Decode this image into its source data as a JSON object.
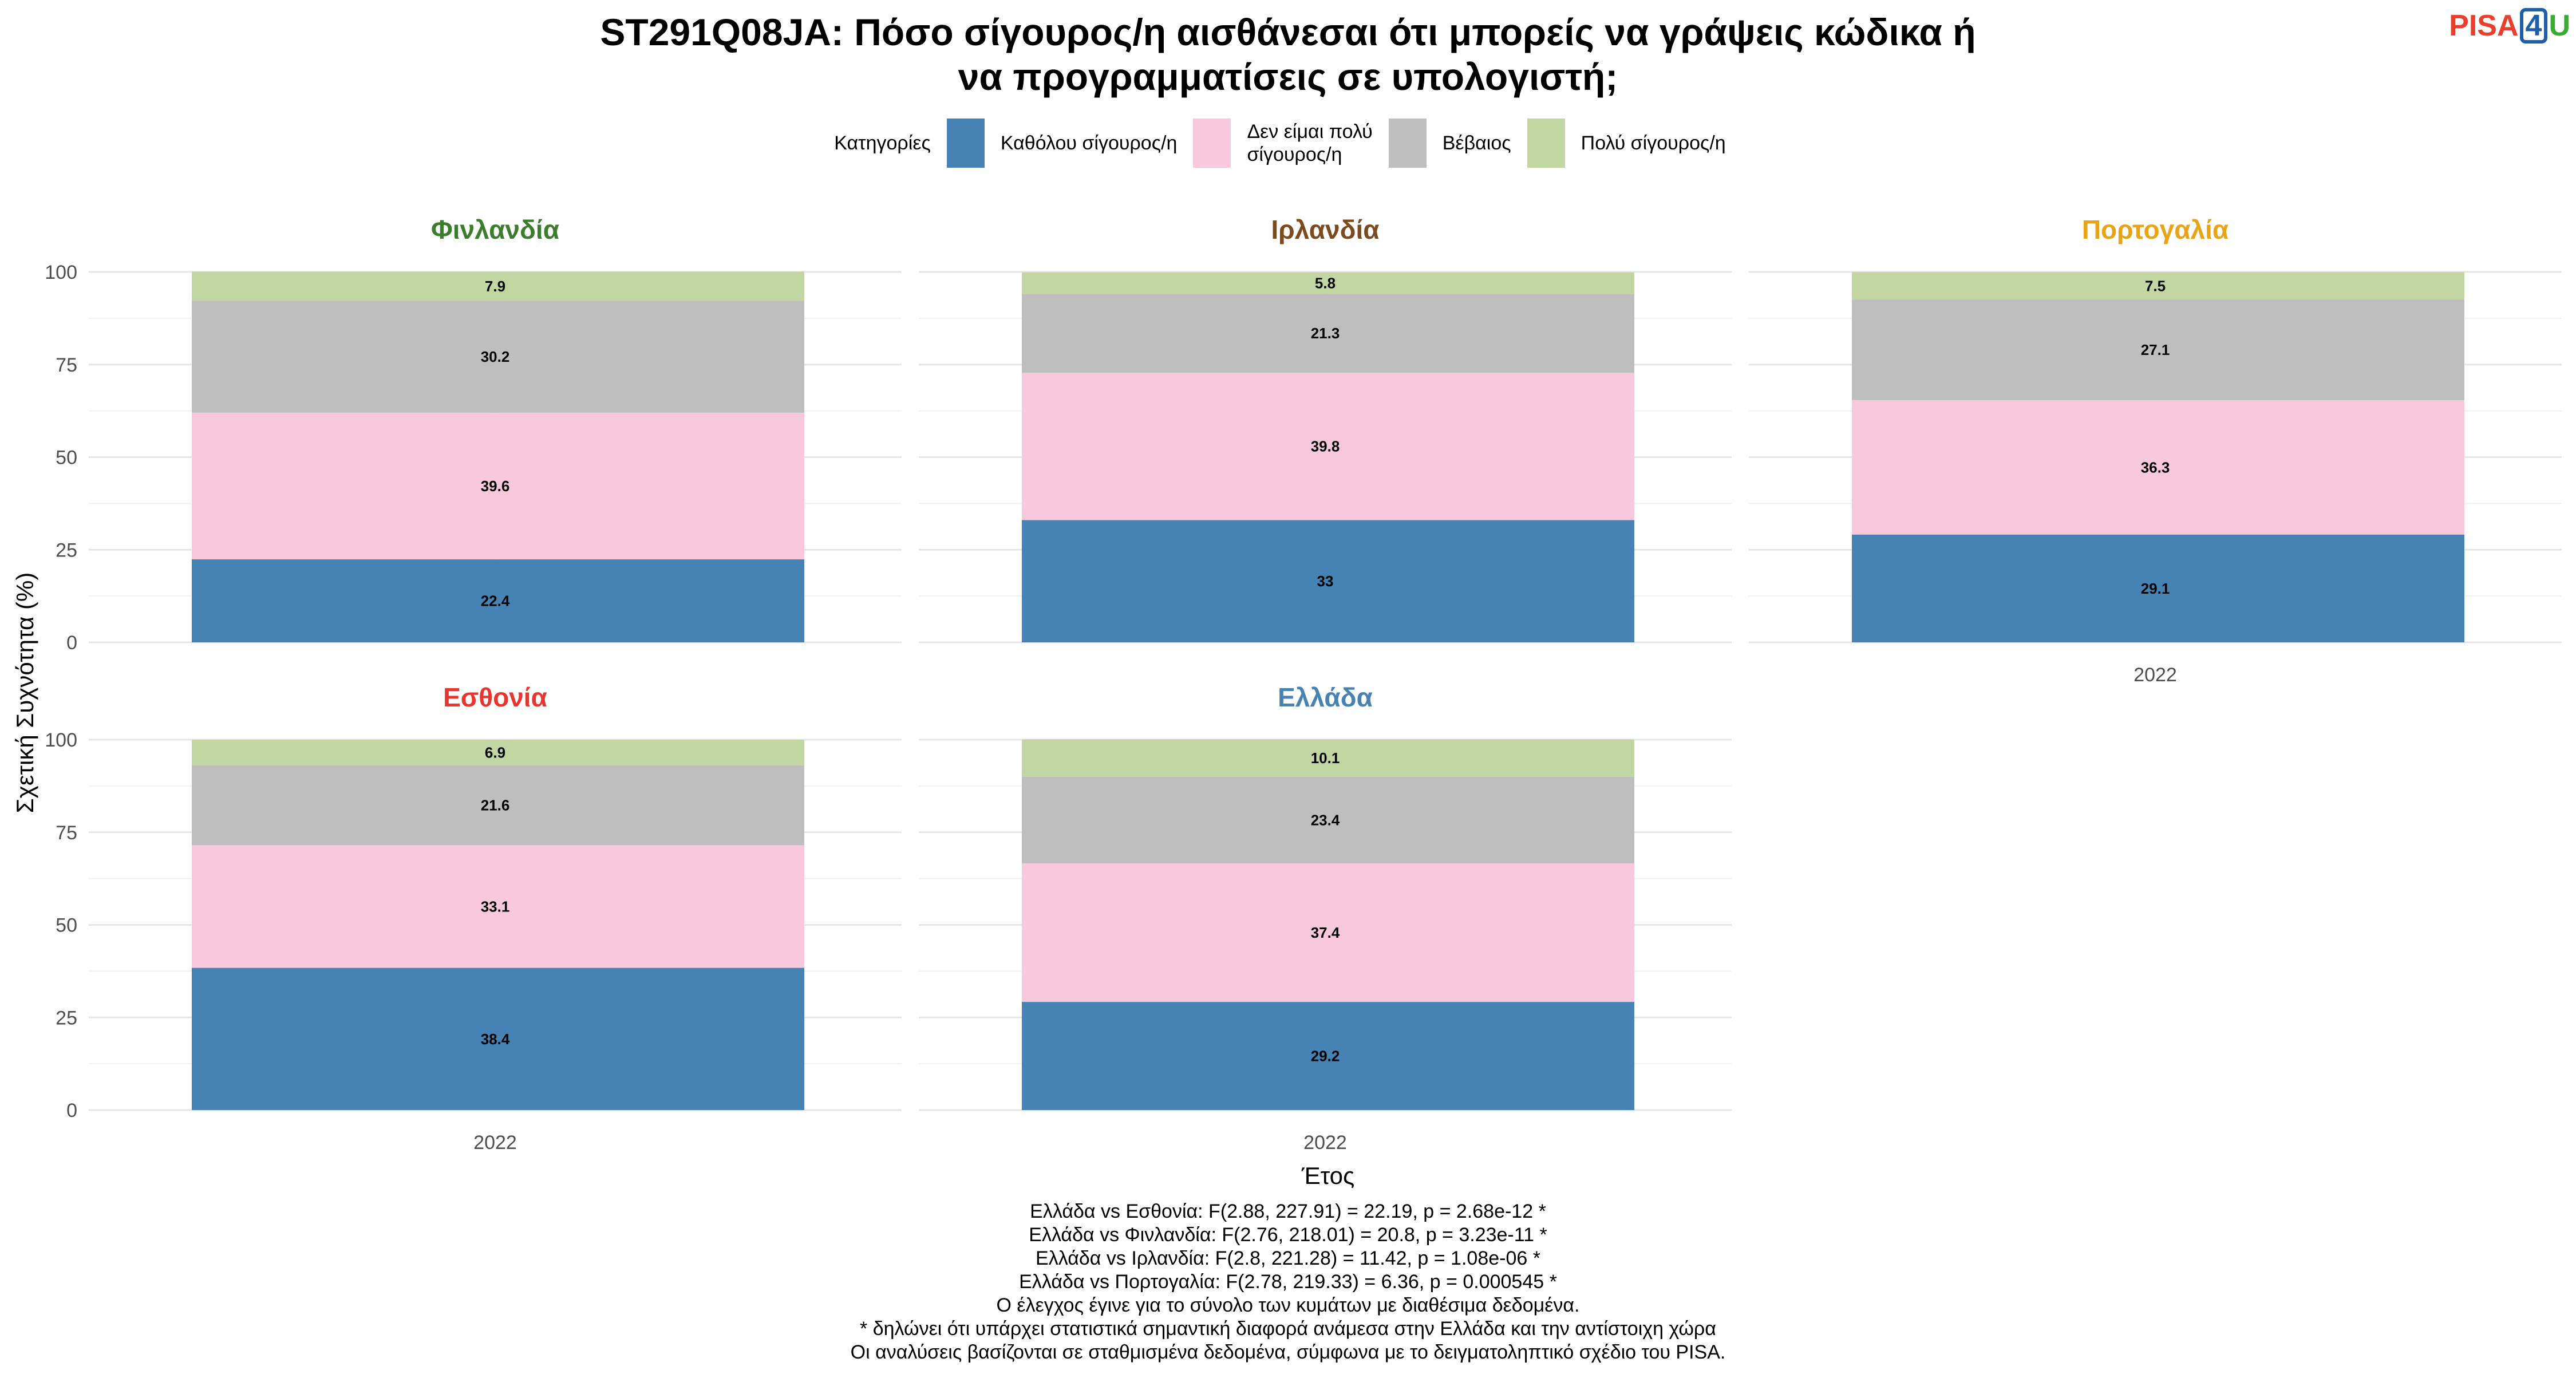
{
  "title_line1": "ST291Q08JA: Πόσο σίγουρος/η αισθάνεσαι ότι μπορείς να γράψεις κώδικα ή",
  "title_line2": "να προγραμματίσεις σε υπολογιστή;",
  "logo": {
    "pisa": "PISA",
    "four": "4",
    "u": "U"
  },
  "legend": {
    "title": "Κατηγορίες",
    "items": [
      {
        "label": "Καθόλου σίγουρος/η",
        "color": "#4682b4"
      },
      {
        "label": "Δεν είμαι πολύ\nσίγουρος/η",
        "color": "#f8c8dc"
      },
      {
        "label": "Βέβαιος",
        "color": "#bebebe"
      },
      {
        "label": "Πολύ σίγουρος/η",
        "color": "#c2d6a4"
      }
    ]
  },
  "chart_data": {
    "type": "bar",
    "stacked": true,
    "xlabel": "Έτος",
    "ylabel": "Σχετική Συχνότητα (%)",
    "ylim": [
      0,
      100
    ],
    "yticks": [
      0,
      25,
      50,
      75,
      100
    ],
    "categories": [
      "2022"
    ],
    "series_names": [
      "Καθόλου σίγουρος/η",
      "Δεν είμαι πολύ σίγουρος/η",
      "Βέβαιος",
      "Πολύ σίγουρος/η"
    ],
    "series_colors": [
      "#4682b4",
      "#f8c8dc",
      "#bebebe",
      "#c2d6a4"
    ],
    "panels": [
      {
        "country": "Φινλανδία",
        "title_color": "#3a7d2c",
        "values": [
          22.4,
          39.6,
          30.2,
          7.9
        ]
      },
      {
        "country": "Ιρλανδία",
        "title_color": "#7b4a1e",
        "values": [
          33,
          39.8,
          21.3,
          5.8
        ]
      },
      {
        "country": "Πορτογαλία",
        "title_color": "#e8a317",
        "values": [
          29.1,
          36.3,
          27.1,
          7.5
        ]
      },
      {
        "country": "Εσθονία",
        "title_color": "#e8352e",
        "values": [
          38.4,
          33.1,
          21.6,
          6.9
        ]
      },
      {
        "country": "Ελλάδα",
        "title_color": "#4682b4",
        "values": [
          29.2,
          37.4,
          23.4,
          10.1
        ]
      }
    ]
  },
  "footnotes": [
    "Ελλάδα vs Εσθονία: F(2.88, 227.91) = 22.19, p = 2.68e-12 *",
    "Ελλάδα vs Φινλανδία: F(2.76, 218.01) = 20.8, p = 3.23e-11 *",
    "Ελλάδα vs Ιρλανδία: F(2.8, 221.28) = 11.42, p = 1.08e-06 *",
    "Ελλάδα vs Πορτογαλία: F(2.78, 219.33) = 6.36, p = 0.000545 *",
    "Ο έλεγχος έγινε για το σύνολο των κυμάτων με διαθέσιμα δεδομένα.",
    "* δηλώνει ότι υπάρχει στατιστικά σημαντική διαφορά ανάμεσα στην Ελλάδα και την αντίστοιχη χώρα",
    "Οι αναλύσεις βασίζονται σε σταθμισμένα δεδομένα, σύμφωνα με το δειγματοληπτικό σχέδιο του PISA."
  ]
}
